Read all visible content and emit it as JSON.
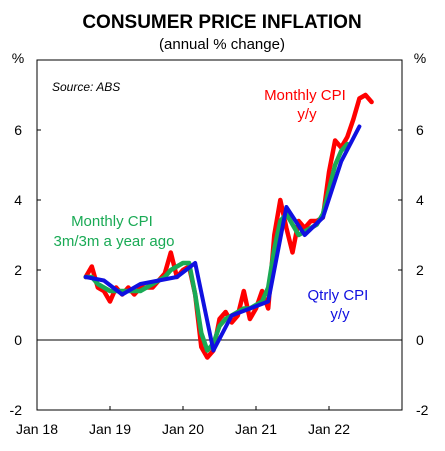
{
  "chart_data": {
    "type": "line",
    "title": "CONSUMER PRICE INFLATION",
    "subtitle": "(annual % change)",
    "ylabel_left": "%",
    "ylabel_right": "%",
    "source": "Source: ABS",
    "ylim": [
      -2,
      8
    ],
    "yticks": [
      -2,
      0,
      2,
      4,
      6
    ],
    "xlim": [
      "2018-01",
      "2022-12"
    ],
    "xticks": [
      {
        "label": "Jan 18",
        "date": "2018-01"
      },
      {
        "label": "Jan 19",
        "date": "2019-01"
      },
      {
        "label": "Jan 20",
        "date": "2020-01"
      },
      {
        "label": "Jan 21",
        "date": "2021-01"
      },
      {
        "label": "Jan 22",
        "date": "2022-01"
      }
    ],
    "grid": false,
    "zero_line": true,
    "colors": {
      "monthly": "#ff0000",
      "three_month": "#1aaa55",
      "quarterly": "#1010e0"
    },
    "series": [
      {
        "name": "Monthly CPI y/y",
        "label_lines": [
          "Monthly CPI",
          "y/y"
        ],
        "color": "#ff0000",
        "points": [
          [
            "2018-09",
            1.8
          ],
          [
            "2018-10",
            2.1
          ],
          [
            "2018-11",
            1.5
          ],
          [
            "2018-12",
            1.4
          ],
          [
            "2019-01",
            1.1
          ],
          [
            "2019-02",
            1.5
          ],
          [
            "2019-03",
            1.3
          ],
          [
            "2019-04",
            1.5
          ],
          [
            "2019-05",
            1.3
          ],
          [
            "2019-06",
            1.5
          ],
          [
            "2019-07",
            1.5
          ],
          [
            "2019-08",
            1.5
          ],
          [
            "2019-09",
            1.7
          ],
          [
            "2019-10",
            1.9
          ],
          [
            "2019-11",
            2.5
          ],
          [
            "2019-12",
            1.8
          ],
          [
            "2020-01",
            2.0
          ],
          [
            "2020-02",
            2.1
          ],
          [
            "2020-03",
            1.3
          ],
          [
            "2020-04",
            -0.2
          ],
          [
            "2020-05",
            -0.5
          ],
          [
            "2020-06",
            -0.3
          ],
          [
            "2020-07",
            0.6
          ],
          [
            "2020-08",
            0.8
          ],
          [
            "2020-09",
            0.5
          ],
          [
            "2020-10",
            0.7
          ],
          [
            "2020-11",
            1.4
          ],
          [
            "2020-12",
            0.6
          ],
          [
            "2021-01",
            0.9
          ],
          [
            "2021-02",
            1.4
          ],
          [
            "2021-03",
            0.9
          ],
          [
            "2021-04",
            3.0
          ],
          [
            "2021-05",
            4.0
          ],
          [
            "2021-06",
            3.2
          ],
          [
            "2021-07",
            2.5
          ],
          [
            "2021-08",
            3.4
          ],
          [
            "2021-09",
            3.2
          ],
          [
            "2021-10",
            3.4
          ],
          [
            "2021-11",
            3.4
          ],
          [
            "2021-12",
            3.5
          ],
          [
            "2022-01",
            4.8
          ],
          [
            "2022-02",
            5.7
          ],
          [
            "2022-03",
            5.5
          ],
          [
            "2022-04",
            5.8
          ],
          [
            "2022-05",
            6.3
          ],
          [
            "2022-06",
            6.9
          ],
          [
            "2022-07",
            7.0
          ],
          [
            "2022-08",
            6.8
          ]
        ]
      },
      {
        "name": "Monthly CPI 3m/3m a year ago",
        "label_lines": [
          "Monthly CPI",
          "3m/3m a year ago"
        ],
        "color": "#1aaa55",
        "points": [
          [
            "2018-09",
            1.8
          ],
          [
            "2018-10",
            1.8
          ],
          [
            "2018-11",
            1.6
          ],
          [
            "2018-12",
            1.5
          ],
          [
            "2019-01",
            1.4
          ],
          [
            "2019-02",
            1.4
          ],
          [
            "2019-03",
            1.4
          ],
          [
            "2019-04",
            1.4
          ],
          [
            "2019-05",
            1.4
          ],
          [
            "2019-06",
            1.4
          ],
          [
            "2019-07",
            1.5
          ],
          [
            "2019-08",
            1.6
          ],
          [
            "2019-09",
            1.7
          ],
          [
            "2019-10",
            1.8
          ],
          [
            "2019-11",
            2.0
          ],
          [
            "2019-12",
            2.1
          ],
          [
            "2020-01",
            2.2
          ],
          [
            "2020-02",
            2.2
          ],
          [
            "2020-03",
            1.3
          ],
          [
            "2020-04",
            0.2
          ],
          [
            "2020-05",
            -0.3
          ],
          [
            "2020-06",
            -0.1
          ],
          [
            "2020-07",
            0.4
          ],
          [
            "2020-08",
            0.6
          ],
          [
            "2020-09",
            0.7
          ],
          [
            "2020-10",
            0.8
          ],
          [
            "2020-11",
            0.9
          ],
          [
            "2020-12",
            0.9
          ],
          [
            "2021-01",
            1.0
          ],
          [
            "2021-02",
            1.1
          ],
          [
            "2021-03",
            1.5
          ],
          [
            "2021-04",
            2.6
          ],
          [
            "2021-05",
            3.4
          ],
          [
            "2021-06",
            3.6
          ],
          [
            "2021-07",
            3.3
          ],
          [
            "2021-08",
            3.0
          ],
          [
            "2021-09",
            3.1
          ],
          [
            "2021-10",
            3.2
          ],
          [
            "2021-11",
            3.3
          ],
          [
            "2021-12",
            3.6
          ],
          [
            "2022-01",
            4.3
          ],
          [
            "2022-02",
            5.0
          ],
          [
            "2022-03",
            5.4
          ],
          [
            "2022-04",
            5.6
          ]
        ]
      },
      {
        "name": "Qtrly CPI y/y",
        "label_lines": [
          "Qtrly CPI",
          "y/y"
        ],
        "color": "#1010e0",
        "points": [
          [
            "2018-09",
            1.8
          ],
          [
            "2018-12",
            1.7
          ],
          [
            "2019-03",
            1.3
          ],
          [
            "2019-06",
            1.6
          ],
          [
            "2019-09",
            1.7
          ],
          [
            "2019-12",
            1.8
          ],
          [
            "2020-03",
            2.2
          ],
          [
            "2020-06",
            -0.3
          ],
          [
            "2020-09",
            0.7
          ],
          [
            "2020-12",
            0.9
          ],
          [
            "2021-03",
            1.1
          ],
          [
            "2021-06",
            3.8
          ],
          [
            "2021-09",
            3.0
          ],
          [
            "2021-12",
            3.5
          ],
          [
            "2022-03",
            5.1
          ],
          [
            "2022-06",
            6.1
          ]
        ]
      }
    ]
  }
}
